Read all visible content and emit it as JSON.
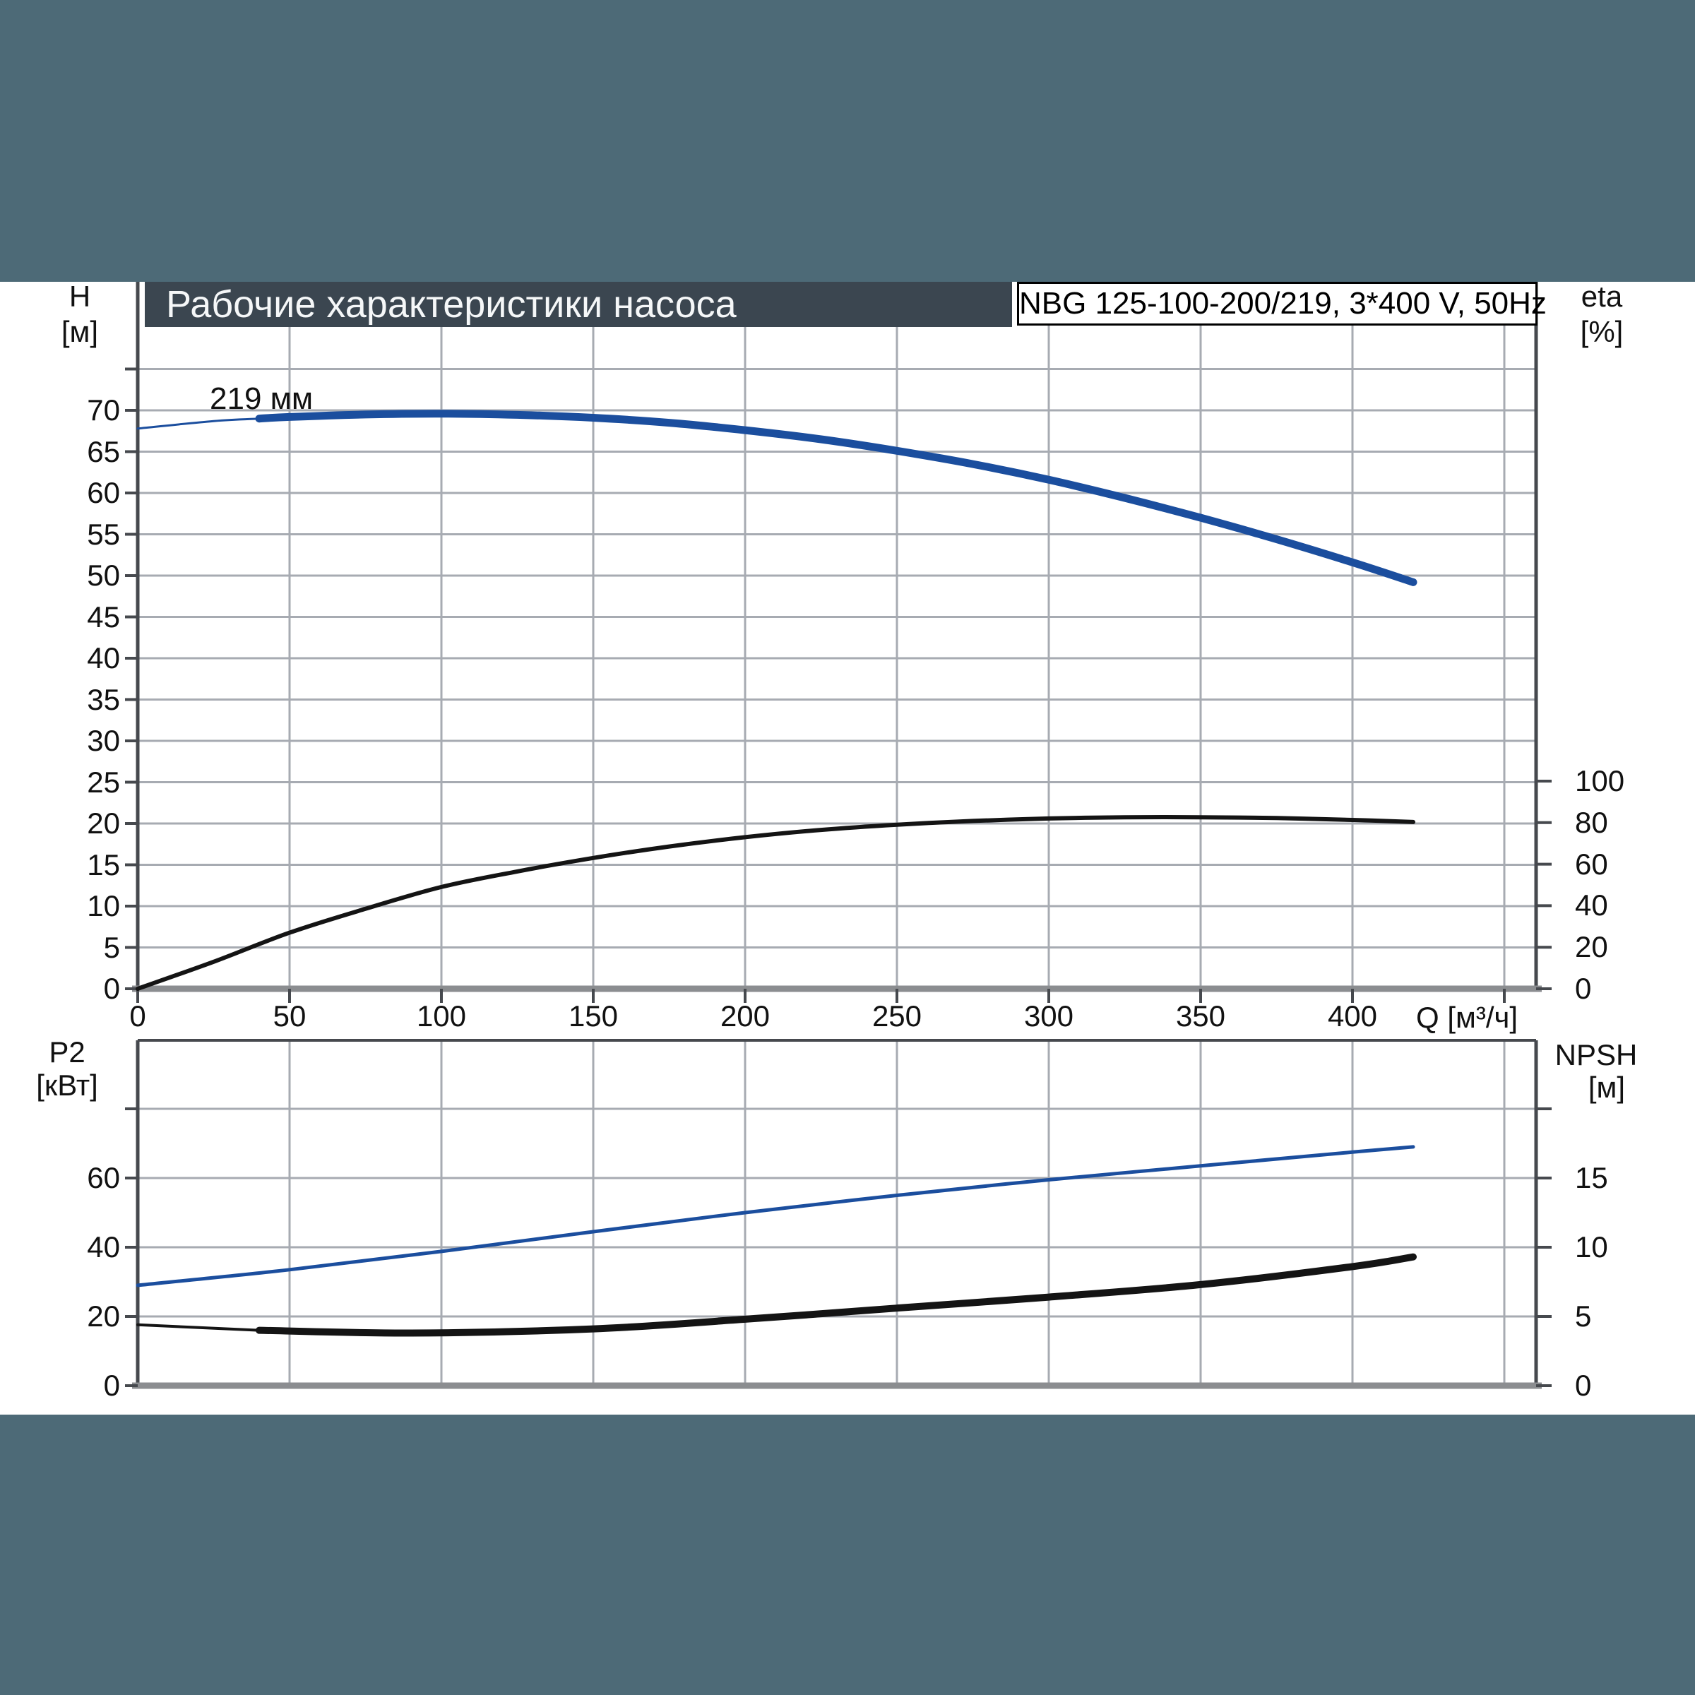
{
  "header": {
    "title": "Рабочие характеристики насоса",
    "pump_label": "NBG 125-100-200/219, 3*400 V, 50Hz"
  },
  "colors": {
    "teal_band": "#4d6a77",
    "title_bar_bg": "#3b4650",
    "title_text": "#f5f7f8",
    "curve_blue": "#1b4e9e",
    "curve_black": "#141414",
    "grid": "#a7abb2",
    "axis_dark": "#46494e",
    "axis_bottom": "#8b8d90",
    "label_text": "#111111"
  },
  "chart_data": [
    {
      "type": "line",
      "title": "H and eta versus Q",
      "x_axis": {
        "label": "Q [м³/ч]",
        "ticks": [
          0,
          50,
          100,
          150,
          200,
          250,
          300,
          350,
          400
        ],
        "extra_ticks": [
          450
        ],
        "range": [
          0,
          460.5
        ]
      },
      "left_axis": {
        "label": "H",
        "unit": "[м]",
        "ticks": [
          0,
          5,
          10,
          15,
          20,
          25,
          30,
          35,
          40,
          45,
          50,
          55,
          60,
          65,
          70
        ],
        "extra_ticks": [
          75
        ],
        "range": [
          0,
          80.3
        ]
      },
      "right_axis": {
        "label": "eta",
        "unit": "[%]",
        "ticks": [
          0,
          20,
          40,
          60,
          80,
          100
        ],
        "extra_ticks": [],
        "range": [
          0,
          100
        ]
      },
      "series": [
        {
          "name": "H (impeller 219 мм)",
          "annotation": "219 мм",
          "axis": "left",
          "color_key": "curve_blue",
          "width": 11,
          "lead_until": 40,
          "lead_width": 3,
          "points": [
            [
              0,
              67.8
            ],
            [
              25,
              68.7
            ],
            [
              50,
              69.2
            ],
            [
              75,
              69.5
            ],
            [
              100,
              69.6
            ],
            [
              125,
              69.45
            ],
            [
              150,
              69.1
            ],
            [
              175,
              68.5
            ],
            [
              200,
              67.6
            ],
            [
              225,
              66.5
            ],
            [
              250,
              65.1
            ],
            [
              275,
              63.5
            ],
            [
              300,
              61.6
            ],
            [
              325,
              59.4
            ],
            [
              350,
              57.0
            ],
            [
              375,
              54.4
            ],
            [
              400,
              51.6
            ],
            [
              420,
              49.2
            ]
          ]
        },
        {
          "name": "eta",
          "axis": "right",
          "color_key": "curve_black",
          "width": 6,
          "lead_until": 0,
          "lead_width": 6,
          "points": [
            [
              0,
              0
            ],
            [
              25,
              13
            ],
            [
              50,
              27
            ],
            [
              75,
              38.5
            ],
            [
              100,
              49
            ],
            [
              125,
              56.5
            ],
            [
              150,
              63
            ],
            [
              175,
              68.5
            ],
            [
              200,
              73
            ],
            [
              225,
              76.5
            ],
            [
              250,
              79
            ],
            [
              275,
              80.8
            ],
            [
              300,
              82
            ],
            [
              325,
              82.6
            ],
            [
              350,
              82.6
            ],
            [
              375,
              82.2
            ],
            [
              400,
              81.3
            ],
            [
              420,
              80.3
            ]
          ]
        }
      ]
    },
    {
      "type": "line",
      "title": "P2 and NPSH versus Q",
      "x_axis": {
        "label": "",
        "ticks": [],
        "extra_ticks": [
          50,
          100,
          150,
          200,
          250,
          300,
          350,
          400,
          450
        ],
        "range": [
          0,
          460.5
        ]
      },
      "left_axis": {
        "label": "P2",
        "unit": "[кВт]",
        "ticks": [
          0,
          20,
          40,
          60
        ],
        "extra_ticks": [
          80
        ],
        "range": [
          0,
          99.8
        ]
      },
      "right_axis": {
        "label": "NPSH",
        "unit": "[м]",
        "ticks": [
          0,
          5,
          10,
          15
        ],
        "extra_ticks": [
          20
        ],
        "range": [
          0,
          24.9
        ]
      },
      "series": [
        {
          "name": "P2",
          "axis": "left",
          "color_key": "curve_blue",
          "width": 5,
          "lead_until": 0,
          "lead_width": 5,
          "points": [
            [
              0,
              29
            ],
            [
              50,
              33.5
            ],
            [
              100,
              38.8
            ],
            [
              150,
              44.5
            ],
            [
              200,
              50
            ],
            [
              250,
              55
            ],
            [
              300,
              59.5
            ],
            [
              350,
              63.5
            ],
            [
              400,
              67.5
            ],
            [
              420,
              69
            ]
          ]
        },
        {
          "name": "NPSH",
          "axis": "right",
          "color_key": "curve_black",
          "width": 10,
          "lead_until": 40,
          "lead_width": 4,
          "points": [
            [
              0,
              4.4
            ],
            [
              40,
              4.0
            ],
            [
              90,
              3.8
            ],
            [
              150,
              4.1
            ],
            [
              200,
              4.8
            ],
            [
              250,
              5.6
            ],
            [
              300,
              6.4
            ],
            [
              350,
              7.3
            ],
            [
              400,
              8.6
            ],
            [
              420,
              9.3
            ]
          ]
        }
      ]
    }
  ]
}
